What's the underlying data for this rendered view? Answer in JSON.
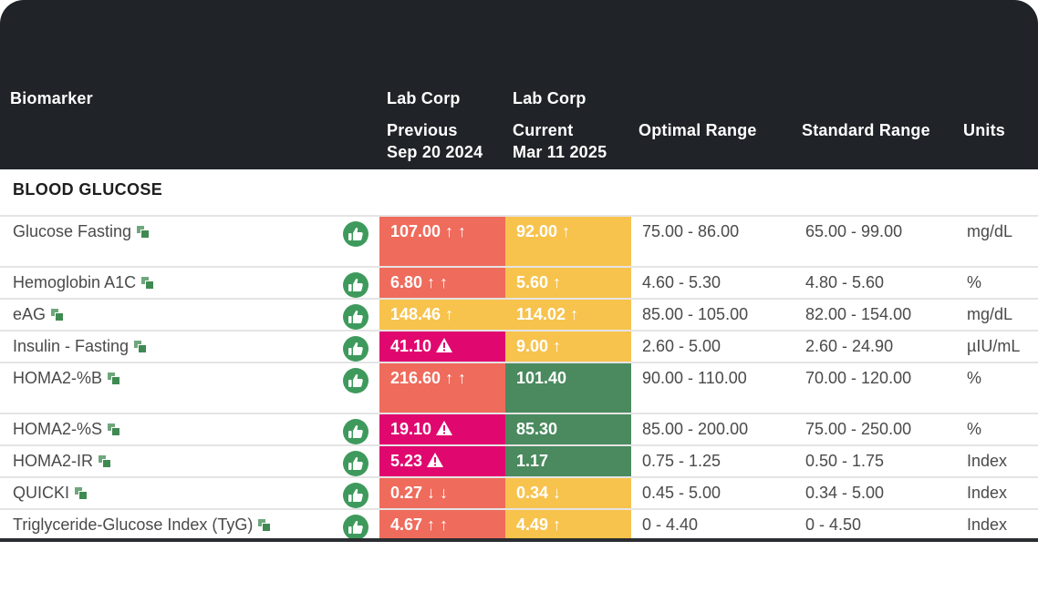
{
  "header": {
    "biomarker": "Biomarker",
    "previous": {
      "lab": "Lab Corp",
      "label": "Previous",
      "date": "Sep 20 2024"
    },
    "current": {
      "lab": "Lab Corp",
      "label": "Current",
      "date": "Mar 11 2025"
    },
    "optimal": "Optimal Range",
    "standard": "Standard Range",
    "units": "Units"
  },
  "section": "BLOOD GLUCOSE",
  "colors": {
    "high": "#ef6b5c",
    "caution": "#f7c34d",
    "critical": "#e0086f",
    "optimal": "#4a8a5e",
    "thumb": "#3e9a5c"
  },
  "rows": [
    {
      "name": "Glucose Fasting",
      "prev": "107.00 ↑ ↑",
      "prev_color": "red",
      "cur": "92.00 ↑",
      "cur_color": "yellow",
      "optimal": "75.00 - 86.00",
      "standard": "65.00 - 99.00",
      "unit": "mg/dL"
    },
    {
      "name": "Hemoglobin A1C",
      "prev": "6.80 ↑ ↑",
      "prev_color": "red",
      "cur": "5.60 ↑",
      "cur_color": "yellow",
      "optimal": "4.60 - 5.30",
      "standard": "4.80 - 5.60",
      "unit": "%"
    },
    {
      "name": "eAG",
      "prev": "148.46 ↑",
      "prev_color": "yellow",
      "cur": "114.02 ↑",
      "cur_color": "yellow",
      "optimal": "85.00 - 105.00",
      "standard": "82.00 - 154.00",
      "unit": "mg/dL"
    },
    {
      "name": "Insulin - Fasting",
      "prev": "41.10",
      "prev_warn": true,
      "prev_color": "magenta",
      "cur": "9.00 ↑",
      "cur_color": "yellow",
      "optimal": "2.60 - 5.00",
      "standard": "2.60 - 24.90",
      "unit": "µIU/mL"
    },
    {
      "name": "HOMA2-%B",
      "prev": "216.60 ↑ ↑",
      "prev_color": "red",
      "cur": "101.40",
      "cur_color": "green",
      "optimal": "90.00 - 110.00",
      "standard": "70.00 - 120.00",
      "unit": "%"
    },
    {
      "name": "HOMA2-%S",
      "prev": "19.10",
      "prev_warn": true,
      "prev_color": "magenta",
      "cur": "85.30",
      "cur_color": "green",
      "optimal": "85.00 - 200.00",
      "standard": "75.00 - 250.00",
      "unit": "%"
    },
    {
      "name": "HOMA2-IR",
      "prev": "5.23",
      "prev_warn": true,
      "prev_color": "magenta",
      "cur": "1.17",
      "cur_color": "green",
      "optimal": "0.75 - 1.25",
      "standard": "0.50 - 1.75",
      "unit": "Index"
    },
    {
      "name": "QUICKI",
      "prev": "0.27 ↓ ↓",
      "prev_color": "red",
      "cur": "0.34 ↓",
      "cur_color": "yellow",
      "optimal": "0.45 - 5.00",
      "standard": "0.34 - 5.00",
      "unit": "Index"
    },
    {
      "name": "Triglyceride-Glucose Index (TyG)",
      "prev": "4.67 ↑ ↑",
      "prev_color": "red",
      "cur": "4.49 ↑",
      "cur_color": "yellow",
      "optimal": "0 - 4.40",
      "standard": "0 - 4.50",
      "unit": "Index"
    }
  ]
}
